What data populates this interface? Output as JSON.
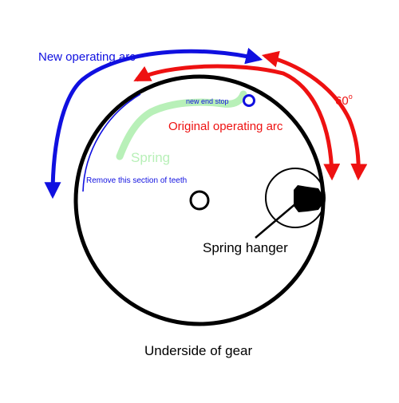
{
  "labels": {
    "new_operating_arc": "New operating arc",
    "original_operating_arc": "Original operating arc",
    "sixty_degrees": "60",
    "degree_symbol": "o",
    "new_end_stop": "new end stop",
    "spring": "Spring",
    "remove_teeth": "Remove this section of teeth",
    "spring_hanger": "Spring hanger",
    "caption": "Underside of gear"
  },
  "colors": {
    "new_arc": "#1010e0",
    "original_arc": "#ee1111",
    "spring": "#b8f0b8",
    "gear_outline": "#000000",
    "text": "#000000"
  }
}
